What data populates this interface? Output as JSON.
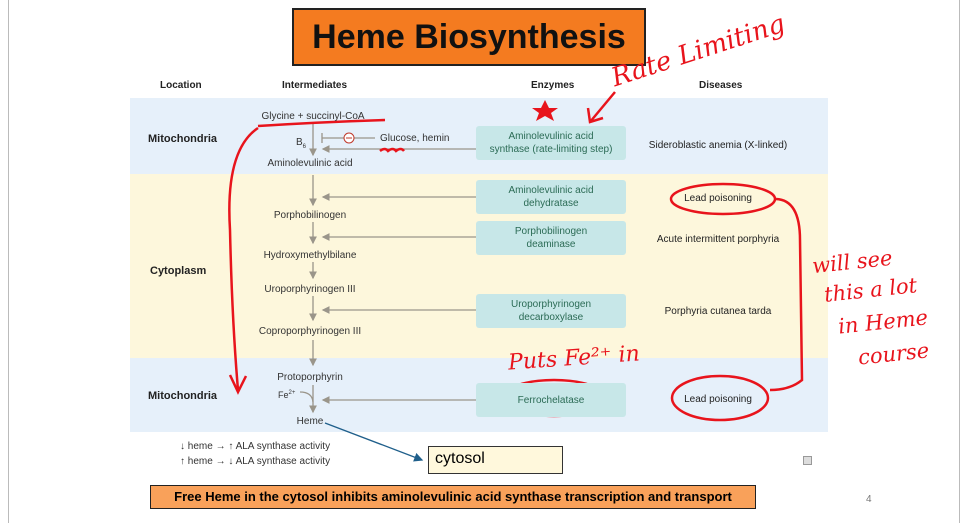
{
  "title": "Heme Biosynthesis",
  "headers": {
    "location": "Location",
    "intermediates": "Intermediates",
    "enzymes": "Enzymes",
    "diseases": "Diseases"
  },
  "locations": [
    "Mitochondria",
    "Cytoplasm",
    "Mitochondria"
  ],
  "intermediates": {
    "glycine": "Glycine + succinyl-CoA",
    "b6": "B",
    "b6_sub": "6",
    "inhibitor": "Glucose, hemin",
    "ala": "Aminolevulinic acid",
    "pbg": "Porphobilinogen",
    "hmb": "Hydroxymethylbilane",
    "uro": "Uroporphyrinogen III",
    "copro": "Coproporphyrinogen III",
    "proto": "Protoporphyrin",
    "fe": "Fe",
    "fe_sup": "2+",
    "heme": "Heme"
  },
  "enzymes": [
    "Aminolevulinic acid synthase (rate-limiting step)",
    "Aminolevulinic acid dehydratase",
    "Porphobilinogen deaminase",
    "Uroporphyrinogen decarboxylase",
    "Ferrochelatase"
  ],
  "diseases": [
    "Sideroblastic anemia (X-linked)",
    "Lead poisoning",
    "Acute intermittent porphyria",
    "Porphyria cutanea tarda",
    "Lead poisoning"
  ],
  "notes": [
    "↓ heme → ↑ ALA synthase activity",
    "↑ heme → ↓ ALA synthase activity"
  ],
  "cytosol_label": "cytosol",
  "banner": "Free Heme in the cytosol inhibits aminolevulinic acid synthase transcription and transport",
  "page_number": "4",
  "handwriting": {
    "rate_limiting": "Rate Limiting",
    "puts_fe": "Puts Fe²⁺ in",
    "will_see": [
      "will see",
      "this a lot",
      "in Heme",
      "course"
    ]
  },
  "colors": {
    "title_bg": "#f47b20",
    "annotation": "#e8141c",
    "enzyme_bg": "#c7e7e8",
    "mito_bg": "#e6f0fa",
    "cyto_bg": "#fdf7dc"
  }
}
